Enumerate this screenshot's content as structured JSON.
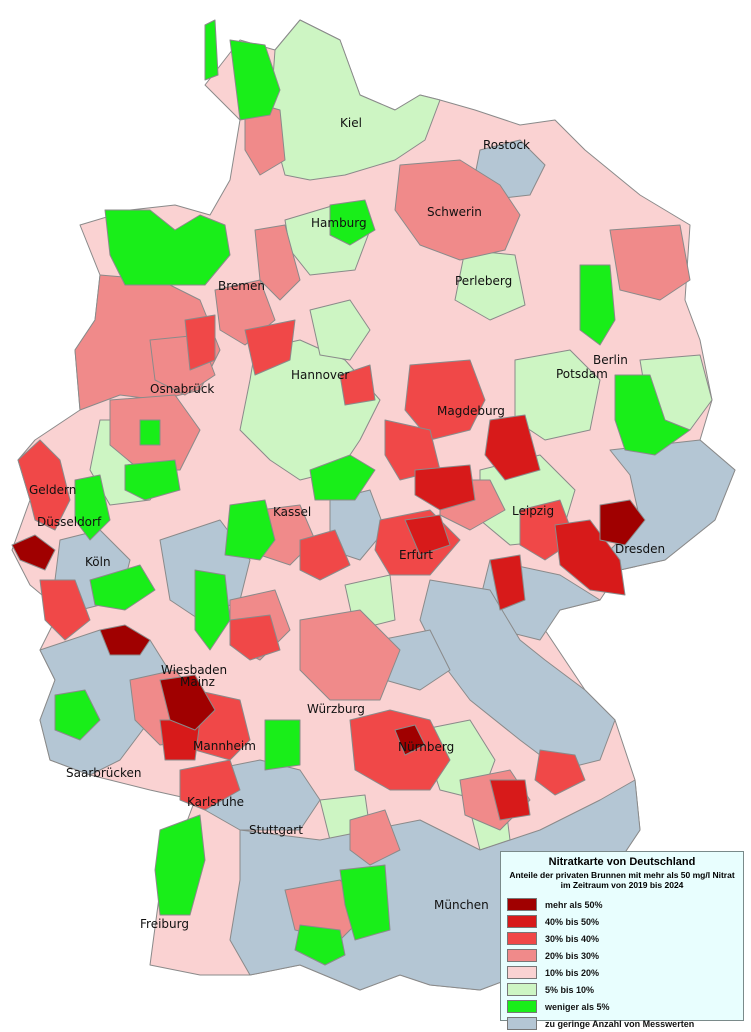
{
  "colors": {
    "gt50": "#a00000",
    "p40_50": "#d71a1a",
    "p30_40": "#f04848",
    "p20_30": "#f08a8a",
    "p10_20": "#fad2d2",
    "p5_10": "#cdf5c3",
    "lt5": "#19ee19",
    "nodata": "#b4c6d4",
    "border": "#8a8a8a"
  },
  "cities": [
    {
      "key": "kiel",
      "label": "Kiel"
    },
    {
      "key": "rostock",
      "label": "Rostock"
    },
    {
      "key": "hamburg",
      "label": "Hamburg"
    },
    {
      "key": "schwerin",
      "label": "Schwerin"
    },
    {
      "key": "bremen",
      "label": "Bremen"
    },
    {
      "key": "perleberg",
      "label": "Perleberg"
    },
    {
      "key": "berlin",
      "label": "Berlin"
    },
    {
      "key": "potsdam",
      "label": "Potsdam"
    },
    {
      "key": "hannover",
      "label": "Hannover"
    },
    {
      "key": "osnabrueck",
      "label": "Osnabrück"
    },
    {
      "key": "magdeburg",
      "label": "Magdeburg"
    },
    {
      "key": "geldern",
      "label": "Geldern"
    },
    {
      "key": "kassel",
      "label": "Kassel"
    },
    {
      "key": "leipzig",
      "label": "Leipzig"
    },
    {
      "key": "duesseldorf",
      "label": "Düsseldorf"
    },
    {
      "key": "dresden",
      "label": "Dresden"
    },
    {
      "key": "erfurt",
      "label": "Erfurt"
    },
    {
      "key": "koeln",
      "label": "Köln"
    },
    {
      "key": "wiesbaden",
      "label": "Wiesbaden"
    },
    {
      "key": "mainz",
      "label": "Mainz"
    },
    {
      "key": "wuerzburg",
      "label": "Würzburg"
    },
    {
      "key": "nuernberg",
      "label": "Nürnberg"
    },
    {
      "key": "mannheim",
      "label": "Mannheim"
    },
    {
      "key": "saarbruecken",
      "label": "Saarbrücken"
    },
    {
      "key": "karlsruhe",
      "label": "Karlsruhe"
    },
    {
      "key": "stuttgart",
      "label": "Stuttgart"
    },
    {
      "key": "muenchen",
      "label": "München"
    },
    {
      "key": "freiburg",
      "label": "Freiburg"
    }
  ],
  "legend": {
    "title": "Nitratkarte von Deutschland",
    "subtitle_line1": "Anteile der privaten Brunnen mit mehr als 50 mg/l Nitrat",
    "subtitle_line2": "im Zeitraum von 2019 bis 2024",
    "items": [
      {
        "label": "mehr als 50%",
        "color": "#a00000"
      },
      {
        "label": "40% bis 50%",
        "color": "#d71a1a"
      },
      {
        "label": "30% bis 40%",
        "color": "#f04848"
      },
      {
        "label": "20% bis 30%",
        "color": "#f08a8a"
      },
      {
        "label": "10% bis 20%",
        "color": "#fad2d2"
      },
      {
        "label": "5% bis 10%",
        "color": "#cdf5c3"
      },
      {
        "label": "weniger als 5%",
        "color": "#19ee19"
      },
      {
        "label": "zu geringe Anzahl von Messwerten",
        "color": "#b4c6d4"
      }
    ]
  }
}
